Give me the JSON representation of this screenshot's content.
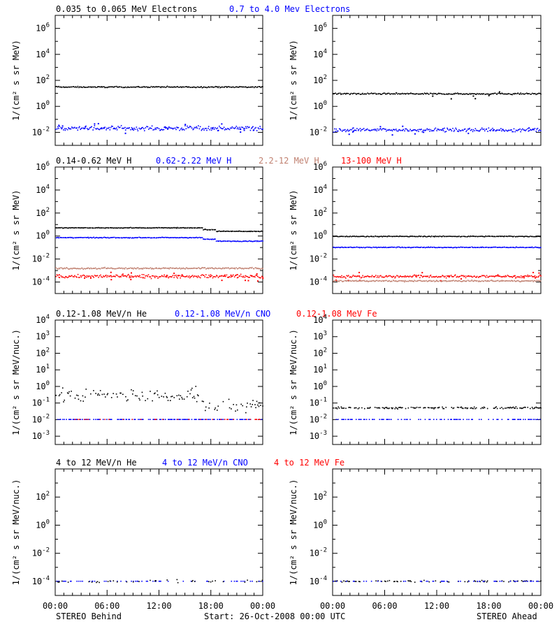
{
  "footer": {
    "left": "STEREO Behind",
    "center": "Start: 26-Oct-2008 00:00 UTC",
    "right": "STEREO Ahead"
  },
  "x_tick_labels": [
    "00:00",
    "06:00",
    "12:00",
    "18:00",
    "00:00"
  ],
  "chart_data": [
    {
      "type": "scatter",
      "row": 1,
      "title_segments": [
        {
          "text": "0.035 to 0.065 MeV Electrons",
          "color": "#000000"
        },
        {
          "text": "0.7 to 4.0 Mev Electrons",
          "color": "#0000ff"
        }
      ],
      "ylabel": "1/(cm² s sr MeV)",
      "yscale": "log",
      "ylim_exp": [
        -3,
        7
      ],
      "ytick_exps": [
        -2,
        0,
        2,
        4,
        6
      ],
      "xlim_hours": [
        0,
        24
      ],
      "panels": [
        {
          "side": "STEREO Behind",
          "series": [
            {
              "color": "#000000",
              "level": 30,
              "scatter_dex": 0.04,
              "outliers": 0
            },
            {
              "color": "#0000ff",
              "level": 0.02,
              "scatter_dex": 0.15,
              "outliers": 20
            }
          ]
        },
        {
          "side": "STEREO Ahead",
          "series": [
            {
              "color": "#000000",
              "level": 9,
              "scatter_dex": 0.05,
              "outliers": 6
            },
            {
              "color": "#0000ff",
              "level": 0.015,
              "scatter_dex": 0.12,
              "outliers": 14
            }
          ]
        }
      ]
    },
    {
      "type": "scatter",
      "row": 2,
      "title_segments": [
        {
          "text": "0.14-0.62 MeV H",
          "color": "#000000"
        },
        {
          "text": "0.62-2.22 MeV H",
          "color": "#0000ff"
        },
        {
          "text": "2.2-12 MeV H",
          "color": "#c08070"
        },
        {
          "text": "13-100 MeV H",
          "color": "#ff0000"
        }
      ],
      "ylabel": "1/(cm² s sr MeV)",
      "yscale": "log",
      "ylim_exp": [
        -5,
        6
      ],
      "ytick_exps": [
        -4,
        -2,
        0,
        2,
        4,
        6
      ],
      "xlim_hours": [
        0,
        24
      ],
      "panels": [
        {
          "side": "STEREO Behind",
          "series": [
            {
              "color": "#000000",
              "segments": [
                {
                  "from": 0,
                  "to": 17,
                  "level": 5
                },
                {
                  "from": 17,
                  "to": 18.5,
                  "level": 3.5
                },
                {
                  "from": 18.5,
                  "to": 24,
                  "level": 2.5
                }
              ],
              "scatter_dex": 0.03
            },
            {
              "color": "#0000ff",
              "segments": [
                {
                  "from": 0,
                  "to": 17,
                  "level": 0.7
                },
                {
                  "from": 17,
                  "to": 18.5,
                  "level": 0.5
                },
                {
                  "from": 18.5,
                  "to": 24,
                  "level": 0.35
                }
              ],
              "scatter_dex": 0.03
            },
            {
              "color": "#c08070",
              "level": 0.0015,
              "scatter_dex": 0.06
            },
            {
              "color": "#ff0000",
              "level": 0.0003,
              "scatter_dex": 0.12,
              "outliers": 25
            }
          ]
        },
        {
          "side": "STEREO Ahead",
          "series": [
            {
              "color": "#000000",
              "level": 0.9,
              "scatter_dex": 0.03
            },
            {
              "color": "#0000ff",
              "level": 0.1,
              "scatter_dex": 0.03
            },
            {
              "color": "#ff0000",
              "level": 0.0003,
              "scatter_dex": 0.1,
              "outliers": 15
            },
            {
              "color": "#c08070",
              "level": 0.00012,
              "scatter_dex": 0.05
            }
          ]
        }
      ]
    },
    {
      "type": "scatter",
      "row": 3,
      "title_segments": [
        {
          "text": "0.12-1.08 MeV/n He",
          "color": "#000000"
        },
        {
          "text": "0.12-1.08 MeV/n CNO",
          "color": "#0000ff"
        },
        {
          "text": "0.12-1.08 MeV Fe",
          "color": "#ff0000"
        }
      ],
      "ylabel": "1/(cm² s sr MeV/nuc.)",
      "yscale": "log",
      "ylim_exp": [
        -3.5,
        4
      ],
      "ytick_exps": [
        -3,
        -2,
        -1,
        0,
        1,
        2,
        3,
        4
      ],
      "xlim_hours": [
        0,
        24
      ],
      "panels": [
        {
          "side": "STEREO Behind",
          "series": [
            {
              "color": "#000000",
              "segments": [
                {
                  "from": 0,
                  "to": 17,
                  "level": 0.3
                },
                {
                  "from": 17,
                  "to": 24,
                  "level": 0.06
                }
              ],
              "scatter_dex": 0.35,
              "sparse": 0.6
            },
            {
              "color": "#0000ff",
              "level": 0.01,
              "scatter_dex": 0.0,
              "sparse": 0.55
            },
            {
              "color": "#ff0000",
              "level": 0.01,
              "scatter_dex": 0.0,
              "sparse": 0.15
            }
          ]
        },
        {
          "side": "STEREO Ahead",
          "series": [
            {
              "color": "#000000",
              "level": 0.05,
              "scatter_dex": 0.05,
              "sparse": 0.6
            },
            {
              "color": "#0000ff",
              "level": 0.01,
              "scatter_dex": 0.0,
              "sparse": 0.3
            }
          ]
        }
      ]
    },
    {
      "type": "scatter",
      "row": 4,
      "title_segments": [
        {
          "text": "4 to 12 MeV/n He",
          "color": "#000000"
        },
        {
          "text": "4 to 12 MeV/n CNO",
          "color": "#0000ff"
        },
        {
          "text": "4 to 12 MeV Fe",
          "color": "#ff0000"
        }
      ],
      "ylabel": "1/(cm² s sr MeV/nuc.)",
      "yscale": "log",
      "ylim_exp": [
        -5,
        4
      ],
      "ytick_exps": [
        -4,
        -2,
        0,
        2
      ],
      "xlim_hours": [
        0,
        24
      ],
      "panels": [
        {
          "side": "STEREO Behind",
          "series": [
            {
              "color": "#0000ff",
              "level": 0.0001,
              "scatter_dex": 0.0,
              "sparse": 0.25
            },
            {
              "color": "#000000",
              "level": 0.0001,
              "scatter_dex": 0.08,
              "sparse": 0.12
            }
          ]
        },
        {
          "side": "STEREO Ahead",
          "series": [
            {
              "color": "#000000",
              "level": 0.0001,
              "scatter_dex": 0.05,
              "sparse": 0.3
            },
            {
              "color": "#0000ff",
              "level": 0.0001,
              "scatter_dex": 0.0,
              "sparse": 0.25
            }
          ]
        }
      ]
    }
  ]
}
